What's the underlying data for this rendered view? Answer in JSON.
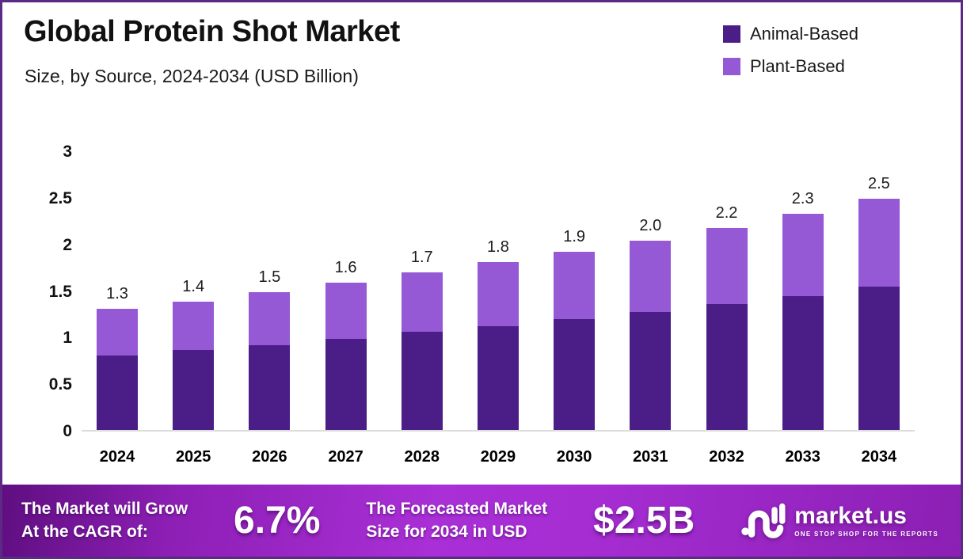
{
  "header": {
    "title": "Global Protein Shot Market",
    "subtitle": "Size, by Source, 2024-2034 (USD Billion)"
  },
  "chart_data": {
    "type": "bar",
    "stacked": true,
    "title": "Global Protein Shot Market",
    "subtitle": "Size, by Source, 2024-2034 (USD Billion)",
    "categories": [
      "2024",
      "2025",
      "2026",
      "2027",
      "2028",
      "2029",
      "2030",
      "2031",
      "2032",
      "2033",
      "2034"
    ],
    "series": [
      {
        "name": "Animal-Based",
        "color": "#4a1d87",
        "values": [
          0.8,
          0.86,
          0.91,
          0.98,
          1.05,
          1.11,
          1.19,
          1.27,
          1.35,
          1.44,
          1.54
        ]
      },
      {
        "name": "Plant-Based",
        "color": "#9659d6",
        "values": [
          0.5,
          0.52,
          0.57,
          0.6,
          0.64,
          0.69,
          0.72,
          0.76,
          0.82,
          0.88,
          0.94
        ]
      }
    ],
    "total_labels": [
      "1.3",
      "1.4",
      "1.5",
      "1.6",
      "1.7",
      "1.8",
      "1.9",
      "2.0",
      "2.2",
      "2.3",
      "2.5"
    ],
    "y_ticks": [
      "3",
      "2.5",
      "2",
      "1.5",
      "1",
      "0.5",
      "0"
    ],
    "ylim": [
      0,
      3
    ],
    "grid": false,
    "legend_position": "top-right",
    "xlabel": "",
    "ylabel": ""
  },
  "footer": {
    "cagr_line1": "The Market will Grow",
    "cagr_line2": "At the CAGR of:",
    "cagr_value": "6.7%",
    "forecast_line1": "The Forecasted Market",
    "forecast_line2": "Size for 2034 in USD",
    "forecast_value": "$2.5B",
    "brand_name": "market.us",
    "brand_tagline": "ONE STOP SHOP FOR THE REPORTS"
  },
  "colors": {
    "frame_border": "#5a2a85",
    "animal_based": "#4a1d87",
    "plant_based": "#9659d6",
    "footer_gradient_start": "#5f0e80",
    "footer_gradient_mid": "#a92fd6",
    "footer_gradient_end": "#8c1fb4",
    "axis_line": "#dcdcdc"
  }
}
